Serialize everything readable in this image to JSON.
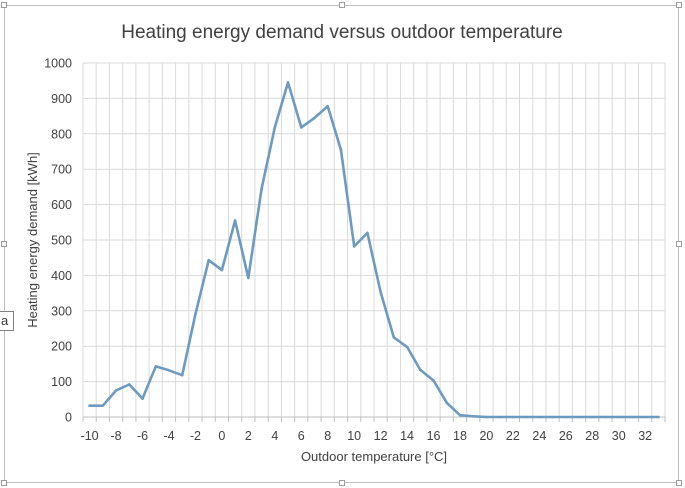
{
  "chart_data": {
    "type": "line",
    "title": "Heating energy demand versus outdoor temperature",
    "xlabel": "Outdoor temperature [°C]",
    "ylabel": "Heating energy demand [kWh]",
    "xlim": [
      -10,
      33
    ],
    "ylim": [
      0,
      1000
    ],
    "x_tick_labels": [
      "-10",
      "-8",
      "-6",
      "-4",
      "-2",
      "0",
      "2",
      "4",
      "6",
      "8",
      "10",
      "12",
      "14",
      "16",
      "18",
      "20",
      "22",
      "24",
      "26",
      "28",
      "30",
      "32"
    ],
    "y_tick_labels": [
      "0",
      "100",
      "200",
      "300",
      "400",
      "500",
      "600",
      "700",
      "800",
      "900",
      "1000"
    ],
    "grid": true,
    "legend": "none",
    "series": [
      {
        "color": "#6d9ac0",
        "x": [
          -10,
          -9,
          -8,
          -7,
          -6,
          -5,
          -4,
          -3,
          -2,
          -1,
          0,
          1,
          2,
          3,
          4,
          5,
          6,
          7,
          8,
          9,
          10,
          11,
          12,
          13,
          14,
          15,
          16,
          17,
          18,
          19,
          20,
          21,
          22,
          23,
          24,
          25,
          26,
          27,
          28,
          29,
          30,
          31,
          32,
          33
        ],
        "y": [
          32,
          32,
          75,
          92,
          52,
          143,
          132,
          118,
          290,
          443,
          415,
          555,
          393,
          645,
          818,
          945,
          818,
          845,
          878,
          755,
          482,
          520,
          353,
          225,
          198,
          133,
          103,
          40,
          5,
          2,
          0,
          0,
          0,
          0,
          0,
          0,
          0,
          0,
          0,
          0,
          0,
          0,
          0,
          0
        ]
      }
    ]
  },
  "side_tab": {
    "label": "a"
  }
}
